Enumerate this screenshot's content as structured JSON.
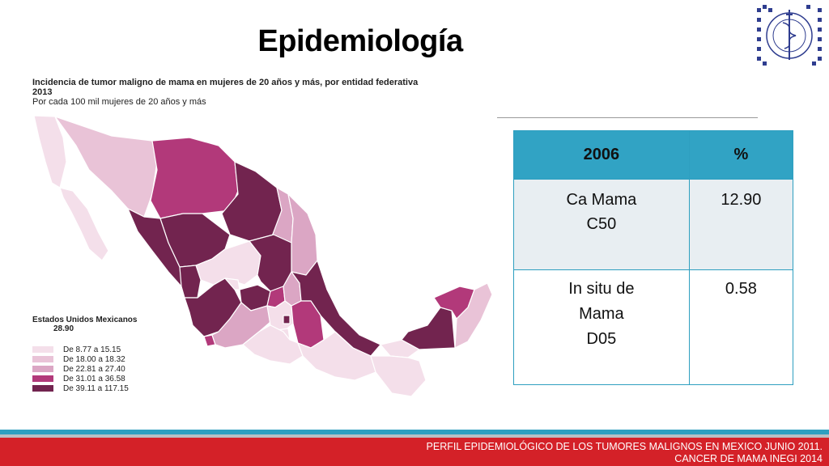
{
  "slide": {
    "title": "Epidemiología"
  },
  "map": {
    "caption_line1": "Incidencia de tumor maligno de mama en mujeres de 20 años y más, por entidad federativa",
    "caption_line2": "2013",
    "caption_line3": "Por cada 100 mil mujeres de 20 años y más",
    "legend_title": "Estados Unidos Mexicanos",
    "legend_value": "28.90",
    "legend": [
      {
        "label": "De 8.77 a 15.15",
        "color": "#f4dfea"
      },
      {
        "label": "De 18.00 a 18.32",
        "color": "#e9c3d7"
      },
      {
        "label": "De 22.81 a 27.40",
        "color": "#dba6c4"
      },
      {
        "label": "De 31.01 a 36.58",
        "color": "#b2397a"
      },
      {
        "label": "De 39.11 a 117.15",
        "color": "#72244f"
      }
    ]
  },
  "table": {
    "header": [
      "2006",
      "%"
    ],
    "rows": [
      {
        "label_lines": [
          "Ca Mama",
          "C50"
        ],
        "value": "12.90"
      },
      {
        "label_lines": [
          "In situ de",
          "Mama",
          "D05"
        ],
        "value": "0.58"
      }
    ]
  },
  "footer": {
    "line1": "PERFIL EPIDEMIOLÓGICO DE LOS TUMORES MALIGNOS EN MEXICO JUNIO 2011.",
    "line2": "CANCER DE MAMA INEGI 2014"
  },
  "logo": {
    "icon": "institute-seal-icon"
  }
}
